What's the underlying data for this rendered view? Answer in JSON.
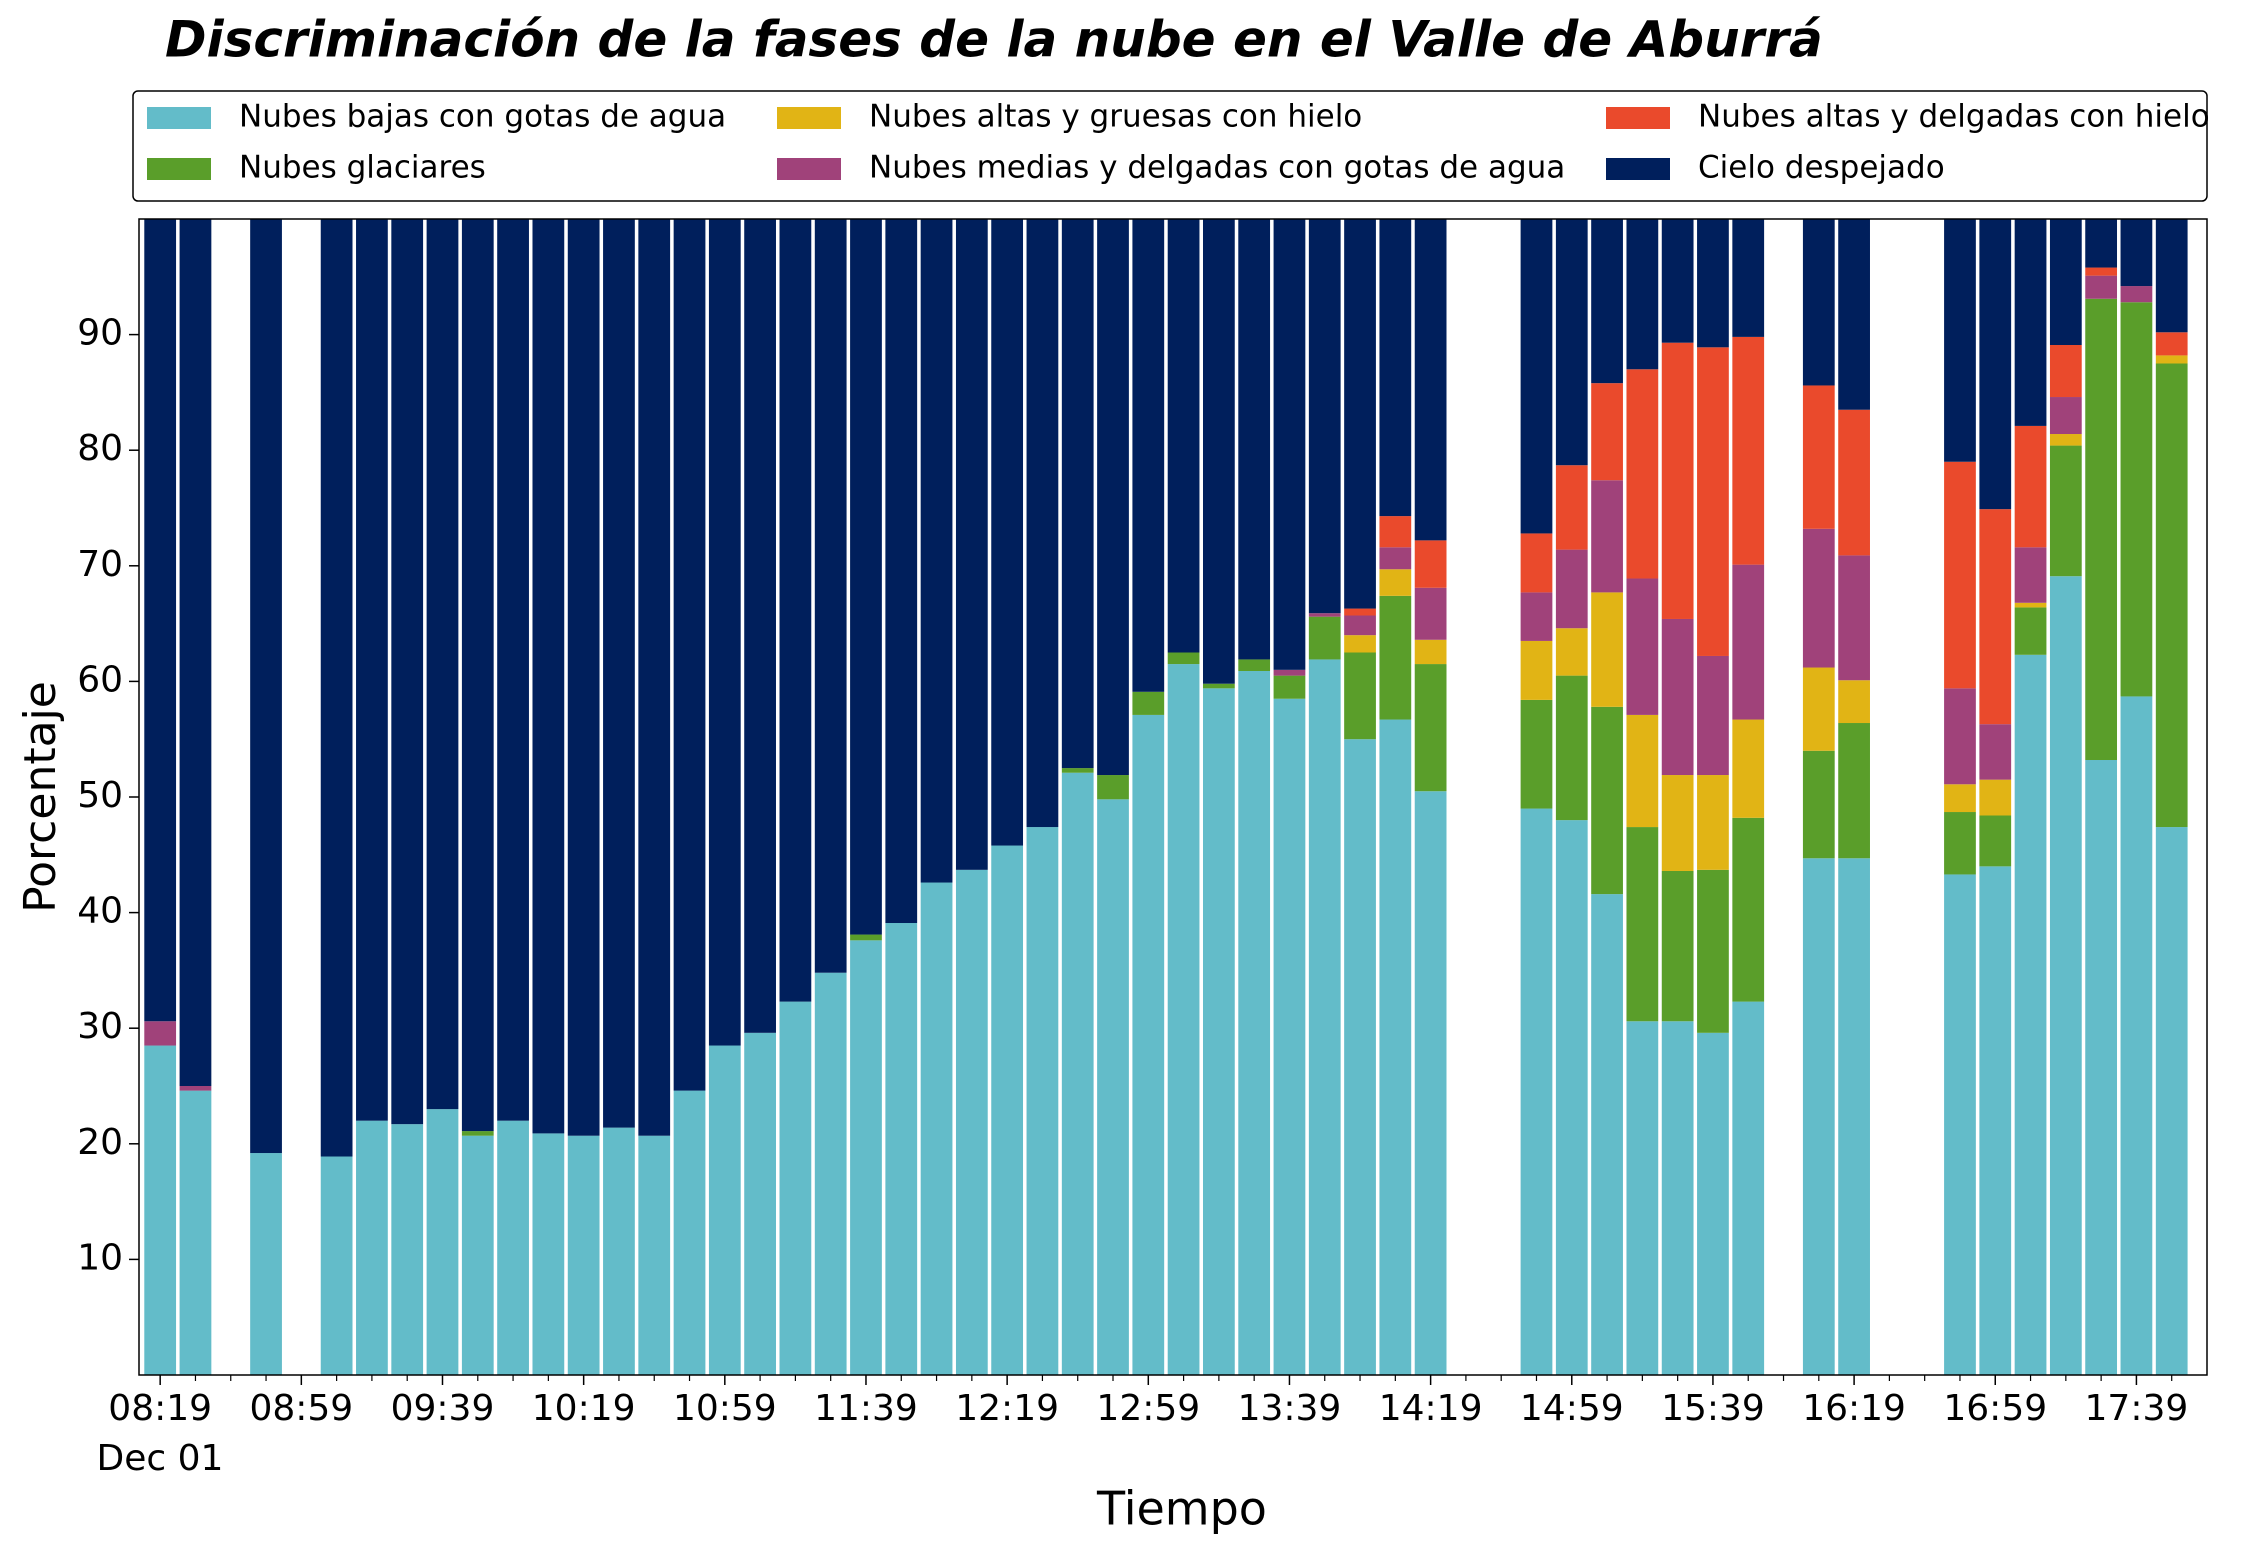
{
  "chart_data": {
    "type": "stacked_bar",
    "title": "Discriminación de la fases de la nube en el Valle de Aburrá",
    "xlabel": "Tiempo",
    "ylabel": "Porcentaje",
    "x_date_label": "Dec 01",
    "x": [
      "08:19",
      "08:29",
      "08:49",
      "09:09",
      "09:19",
      "09:29",
      "09:39",
      "09:49",
      "09:59",
      "10:09",
      "10:19",
      "10:29",
      "10:39",
      "10:49",
      "10:59",
      "11:09",
      "11:19",
      "11:29",
      "11:39",
      "11:49",
      "11:59",
      "12:09",
      "12:19",
      "12:29",
      "12:39",
      "12:49",
      "12:59",
      "13:09",
      "13:19",
      "13:29",
      "13:39",
      "13:49",
      "13:59",
      "14:09",
      "14:19",
      "14:49",
      "14:59",
      "15:09",
      "15:19",
      "15:29",
      "15:39",
      "15:49",
      "16:09",
      "16:19",
      "16:49",
      "16:59",
      "17:09",
      "17:19",
      "17:29",
      "17:39",
      "17:49"
    ],
    "series": [
      {
        "name": "Nubes bajas con gotas de agua",
        "color": "#63bcc9",
        "values": [
          28.5,
          24.6,
          19.2,
          18.9,
          22.0,
          21.7,
          23.0,
          20.7,
          22.0,
          20.9,
          20.7,
          21.4,
          20.7,
          24.6,
          28.5,
          29.6,
          32.3,
          34.8,
          37.6,
          39.1,
          42.6,
          43.7,
          45.8,
          47.4,
          52.1,
          49.8,
          57.1,
          61.5,
          59.4,
          60.9,
          58.5,
          61.9,
          55.0,
          56.7,
          50.5,
          49.0,
          48.0,
          41.6,
          30.6,
          30.6,
          29.6,
          32.3,
          44.7,
          44.7,
          43.3,
          44.0,
          62.3,
          69.1,
          53.2,
          58.7,
          47.4
        ]
      },
      {
        "name": "Nubes glaciares",
        "color": "#5a9e2a",
        "values": [
          0,
          0,
          0,
          0,
          0,
          0,
          0,
          0.4,
          0,
          0,
          0,
          0,
          0,
          0,
          0,
          0,
          0,
          0,
          0.5,
          0,
          0,
          0,
          0,
          0,
          0.4,
          2.1,
          2.0,
          1.0,
          0.4,
          1.0,
          2.0,
          3.7,
          7.5,
          10.7,
          11.0,
          9.4,
          12.5,
          16.2,
          16.8,
          13.0,
          14.1,
          15.9,
          9.3,
          11.7,
          5.4,
          4.4,
          4.1,
          11.3,
          39.9,
          34.1,
          40.1
        ]
      },
      {
        "name": "Nubes altas y gruesas con hielo",
        "color": "#e1b415",
        "values": [
          0,
          0,
          0,
          0,
          0,
          0,
          0,
          0,
          0,
          0,
          0,
          0,
          0,
          0,
          0,
          0,
          0,
          0,
          0,
          0,
          0,
          0,
          0,
          0,
          0,
          0,
          0,
          0,
          0,
          0,
          0,
          0,
          1.5,
          2.3,
          2.1,
          5.1,
          4.1,
          9.9,
          9.7,
          8.3,
          8.2,
          8.5,
          7.2,
          3.7,
          2.4,
          3.1,
          0.4,
          1.0,
          0,
          0,
          0.7
        ]
      },
      {
        "name": "Nubes medias y delgadas con gotas de agua",
        "color": "#a0427a",
        "values": [
          2.1,
          0.4,
          0,
          0,
          0,
          0,
          0,
          0,
          0,
          0,
          0,
          0,
          0,
          0,
          0,
          0,
          0,
          0,
          0,
          0,
          0,
          0,
          0,
          0,
          0,
          0,
          0,
          0,
          0,
          0,
          0.5,
          0.3,
          1.7,
          1.9,
          4.5,
          4.2,
          6.8,
          9.7,
          11.8,
          13.5,
          10.3,
          13.4,
          12.0,
          10.8,
          8.3,
          4.8,
          4.8,
          3.2,
          2.0,
          1.4,
          0
        ]
      },
      {
        "name": "Nubes altas y delgadas con hielo",
        "color": "#ea4a2c",
        "values": [
          0,
          0,
          0,
          0,
          0,
          0,
          0,
          0,
          0,
          0,
          0,
          0,
          0,
          0,
          0,
          0,
          0,
          0,
          0,
          0,
          0,
          0,
          0,
          0,
          0,
          0,
          0,
          0,
          0,
          0,
          0,
          0,
          0.6,
          2.7,
          4.1,
          5.1,
          7.3,
          8.4,
          18.1,
          23.9,
          26.7,
          19.7,
          12.4,
          12.6,
          19.6,
          18.6,
          10.5,
          4.5,
          0.7,
          0,
          2.0
        ]
      },
      {
        "name": "Cielo despejado",
        "color": "#001f5c",
        "values": [
          69.4,
          75.0,
          80.8,
          81.1,
          78.0,
          78.3,
          77.0,
          78.9,
          78.0,
          79.1,
          79.3,
          78.6,
          79.3,
          75.4,
          71.5,
          70.4,
          67.7,
          65.2,
          61.9,
          60.9,
          57.4,
          56.3,
          54.2,
          52.6,
          47.5,
          48.1,
          40.9,
          37.5,
          40.2,
          38.1,
          39.0,
          34.1,
          33.7,
          25.7,
          27.8,
          27.2,
          21.3,
          14.2,
          13.0,
          10.7,
          11.1,
          10.2,
          14.4,
          16.5,
          21.0,
          25.1,
          17.9,
          10.9,
          4.2,
          5.8,
          9.8
        ]
      }
    ],
    "xlim": [
      "08:13",
      "17:59"
    ],
    "xticks": [
      "08:19",
      "08:59",
      "09:39",
      "10:19",
      "10:59",
      "11:39",
      "12:19",
      "12:59",
      "13:39",
      "14:19",
      "14:59",
      "15:39",
      "16:19",
      "16:59",
      "17:39"
    ],
    "xminorticks": [
      "08:29",
      "08:39",
      "08:49",
      "09:09",
      "09:19",
      "09:29",
      "09:49",
      "09:59",
      "10:09",
      "10:29",
      "10:39",
      "10:49",
      "11:09",
      "11:19",
      "11:29",
      "11:49",
      "11:59",
      "12:09",
      "12:29",
      "12:39",
      "12:49",
      "13:09",
      "13:19",
      "13:29",
      "13:49",
      "13:59",
      "14:09",
      "14:29",
      "14:39",
      "14:49",
      "15:09",
      "15:19",
      "15:29",
      "15:49",
      "15:59",
      "16:09",
      "16:29",
      "16:39",
      "16:49",
      "17:09",
      "17:19",
      "17:29",
      "17:49"
    ],
    "ylim": [
      0,
      100
    ],
    "yticks": [
      10,
      20,
      30,
      40,
      50,
      60,
      70,
      80,
      90
    ]
  }
}
